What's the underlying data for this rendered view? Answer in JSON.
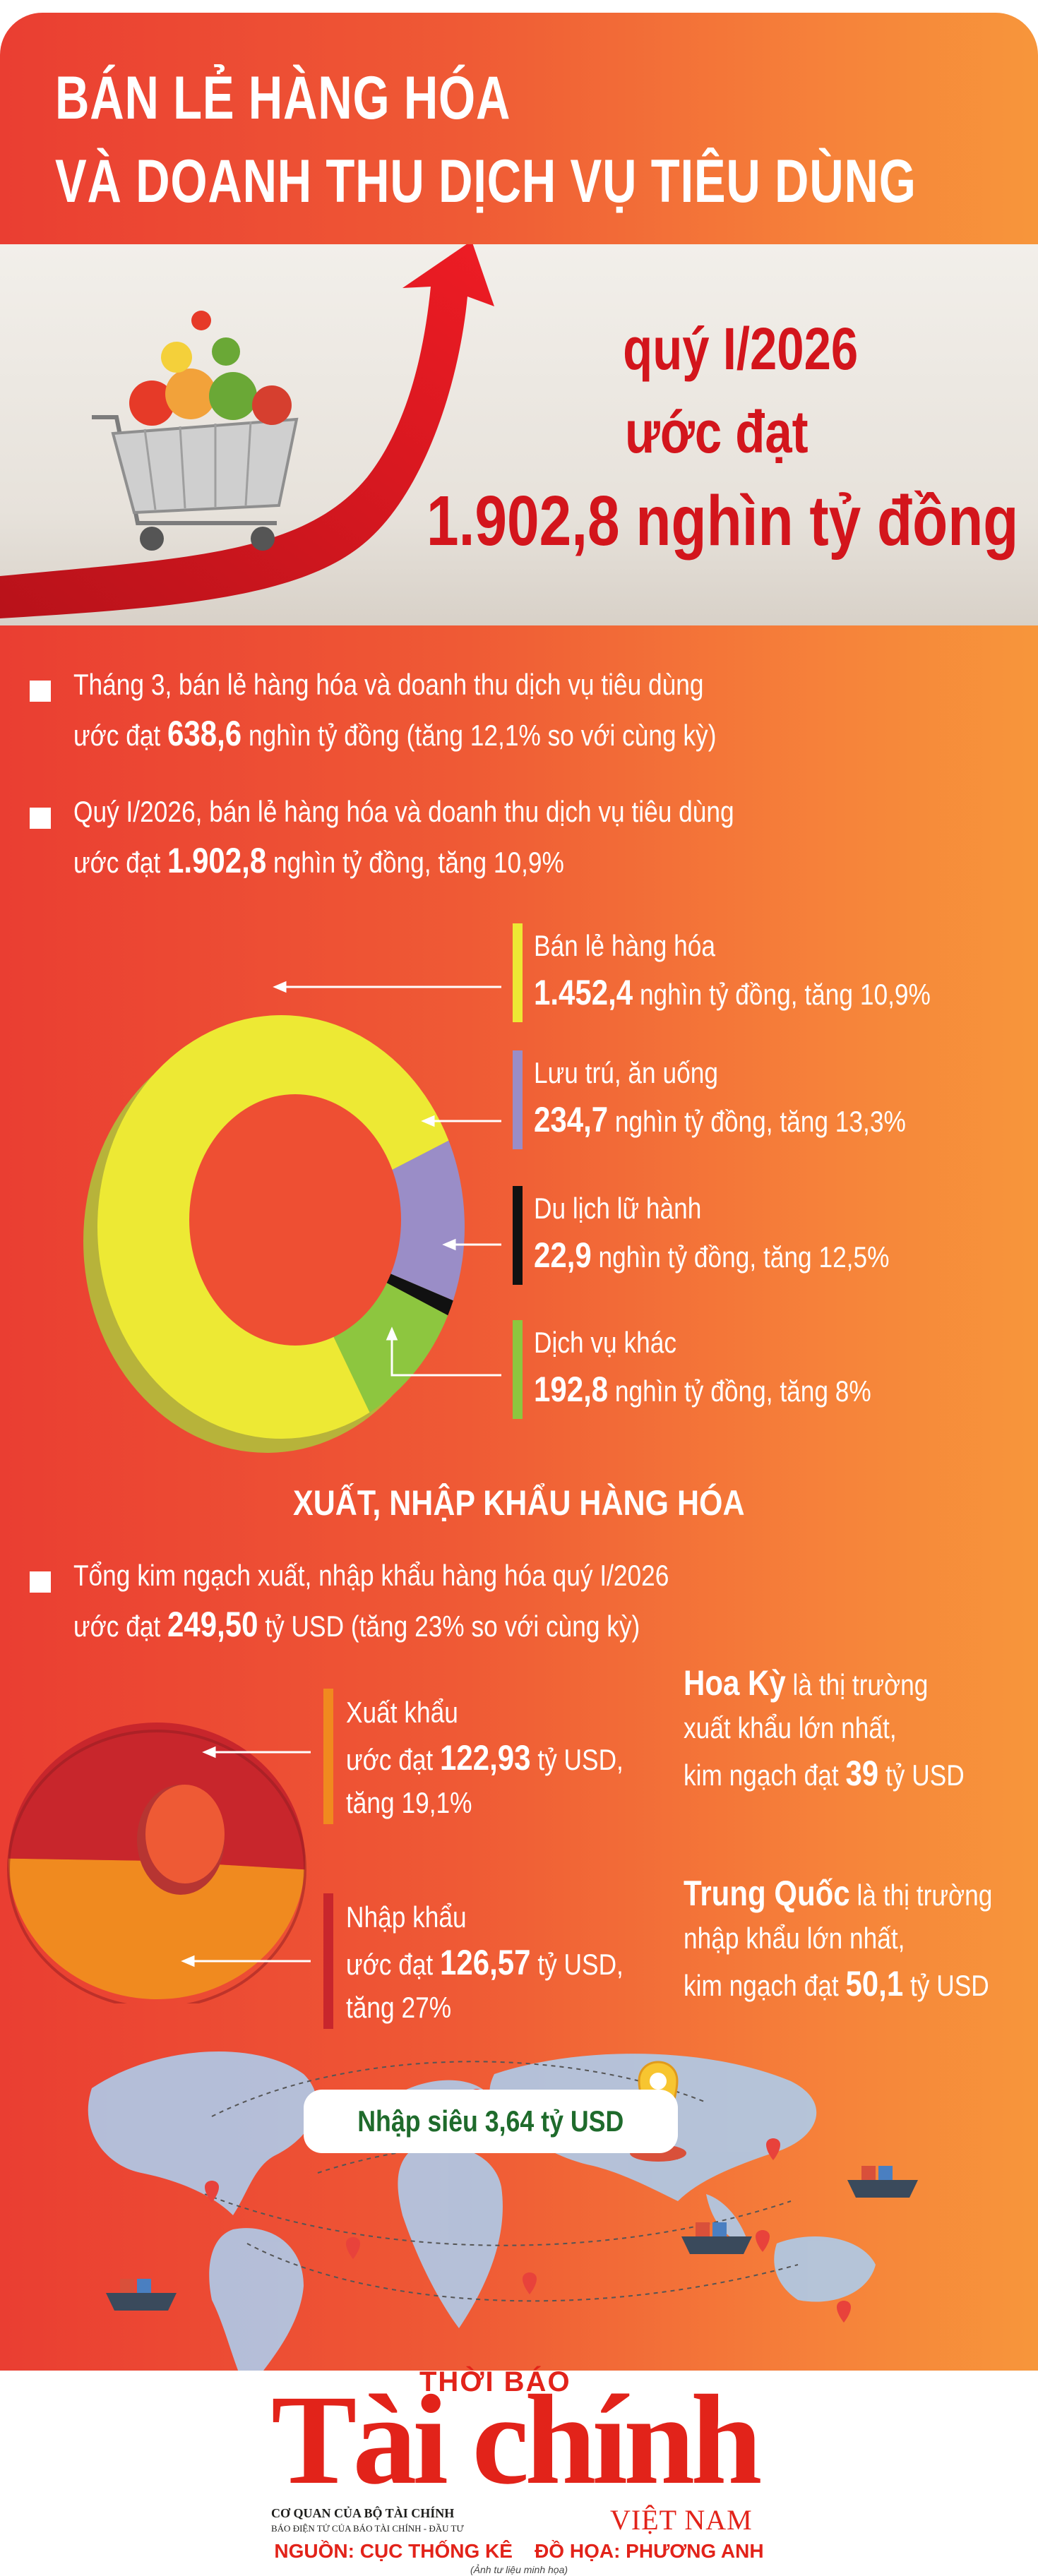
{
  "title": {
    "line1": "BÁN LẺ HÀNG HÓA",
    "line2": "VÀ DOANH THU DỊCH VỤ TIÊU DÙNG"
  },
  "hero": {
    "line1": "quý I/2026",
    "line2": "ước đạt",
    "line3": "1.902,8 nghìn tỷ đồng"
  },
  "bullets": [
    {
      "line1": "Tháng 3, bán lẻ hàng hóa và doanh thu dịch vụ tiêu dùng",
      "pre": "ước đạt ",
      "value": "638,6",
      "post": " nghìn tỷ đồng (tăng 12,1% so với cùng kỳ)"
    },
    {
      "line1": "Quý I/2026, bán lẻ hàng hóa và doanh thu dịch vụ tiêu dùng",
      "pre": "ước đạt ",
      "value": "1.902,8",
      "post": " nghìn tỷ đồng, tăng 10,9%"
    }
  ],
  "retail_segments": [
    {
      "name": "Bán lẻ hàng hóa",
      "value": "1.452,4",
      "unit": " nghìn tỷ đồng, tăng 10,9%",
      "color": "#ede934"
    },
    {
      "name": "Lưu trú, ăn uống",
      "value": "234,7",
      "unit": " nghìn tỷ đồng, tăng 13,3%",
      "color": "#9a8dc7"
    },
    {
      "name": "Du lịch lữ hành",
      "value": "22,9",
      "unit": " nghìn tỷ đồng, tăng 12,5%",
      "color": "#111111"
    },
    {
      "name": "Dịch vụ khác",
      "value": "192,8",
      "unit": " nghìn tỷ đồng, tăng 8%",
      "color": "#8dc63f"
    }
  ],
  "trade": {
    "heading": "XUẤT, NHẬP KHẨU HÀNG HÓA",
    "bullet_line1": "Tổng kim ngạch xuất, nhập khẩu hàng hóa quý I/2026",
    "bullet_pre": "ước đạt ",
    "bullet_value": "249,50",
    "bullet_post": " tỷ USD (tăng 23% so với cùng kỳ)",
    "export": {
      "name": "Xuất khẩu",
      "pre": "ước đạt ",
      "value": "122,93",
      "unit": " tỷ USD,",
      "growth": "tăng 19,1%",
      "color": "#f08a1f"
    },
    "import": {
      "name": "Nhập khẩu",
      "pre": "ước đạt ",
      "value": "126,57",
      "unit": " tỷ USD,",
      "growth": "tăng 27%",
      "color": "#c8262c"
    },
    "us": {
      "name": "Hoa Kỳ",
      "rest1": " là thị trường",
      "line2": "xuất khẩu lớn nhất,",
      "pre": "kim ngạch đạt ",
      "value": "39",
      "post": " tỷ USD"
    },
    "cn": {
      "name": "Trung Quốc",
      "rest1": " là thị trường",
      "line2": "nhập khẩu lớn nhất,",
      "pre": "kim ngạch đạt ",
      "value": "50,1",
      "post": " tỷ USD"
    },
    "deficit": "Nhập siêu 3,64 tỷ USD"
  },
  "logo": {
    "top": "THỜI BÁO",
    "main": "Tài chính",
    "country": "VIỆT NAM",
    "sub1": "CƠ QUAN CỦA BỘ TÀI CHÍNH",
    "sub2": "BÁO ĐIỆN TỬ CỦA BÁO TÀI CHÍNH - ĐẦU TƯ"
  },
  "credits": {
    "source": "NGUỒN: CỤC THỐNG KÊ",
    "design": "ĐỒ HỌA: PHƯƠNG ANH",
    "note": "(Ảnh tư liệu minh họa)"
  }
}
